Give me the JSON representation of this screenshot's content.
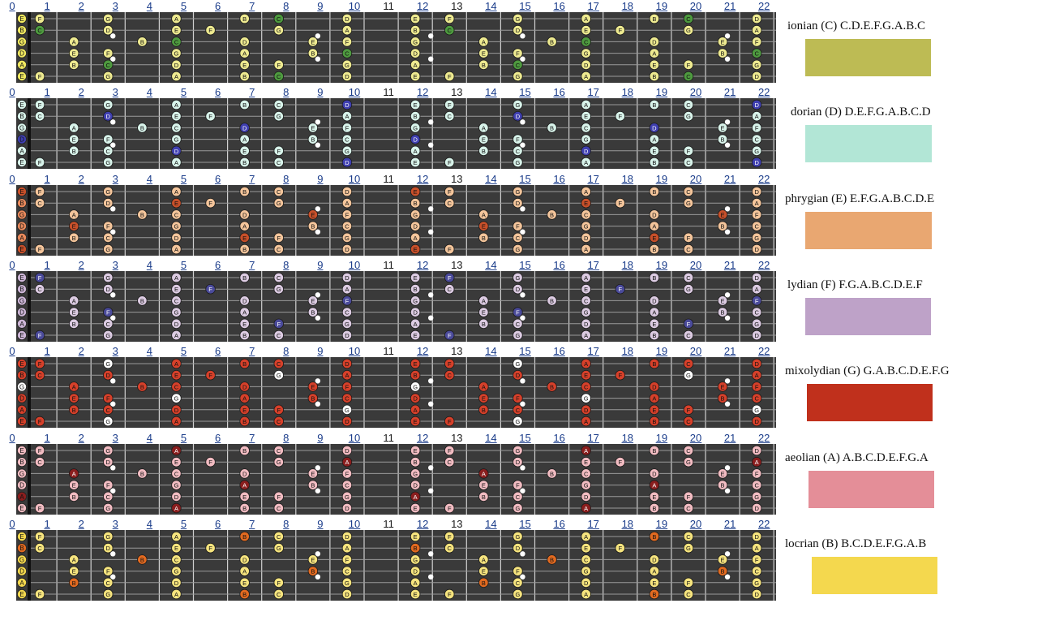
{
  "frets": [
    "0",
    "1",
    "2",
    "3",
    "4",
    "5",
    "6",
    "7",
    "8",
    "9",
    "10",
    "11",
    "12",
    "13",
    "14",
    "15",
    "16",
    "17",
    "18",
    "19",
    "20",
    "21",
    "22"
  ],
  "strings": [
    "E",
    "B",
    "G",
    "D",
    "A",
    "E"
  ],
  "modes": [
    {
      "label": "ionian (C)   C.D.E.F.G.A.B.C",
      "root": "C",
      "color": "#bdbb54",
      "rootColor": "#4e9a3f",
      "noteColor": "#eeea90",
      "openColor": "#f0e860",
      "notes": [
        "C",
        "D",
        "E",
        "F",
        "G",
        "A",
        "B"
      ]
    },
    {
      "label": "dorian (D)  D.E.F.G.A.B.C.D",
      "root": "D",
      "color": "#b2e6d6",
      "rootColor": "#3f3fb0",
      "noteColor": "#d8f3ea",
      "openColor": "#d8f3ea",
      "notes": [
        "D",
        "E",
        "F",
        "G",
        "A",
        "B",
        "C"
      ]
    },
    {
      "label": "phrygian (E)  E.F.G.A.B.C.D.E",
      "root": "E",
      "color": "#e9a771",
      "rootColor": "#c8502a",
      "noteColor": "#f4c59b",
      "openColor": "#e98a5c",
      "notes": [
        "E",
        "F",
        "G",
        "A",
        "B",
        "C",
        "D"
      ]
    },
    {
      "label": "lydian (F)  F.G.A.B.C.D.E.F",
      "root": "F",
      "color": "#bea2c8",
      "rootColor": "#4a4a9a",
      "noteColor": "#dccbe2",
      "openColor": "#cdb6d7",
      "notes": [
        "F",
        "G",
        "A",
        "B",
        "C",
        "D",
        "E"
      ]
    },
    {
      "label": "mixolydian (G) G.A.B.C.D.E.F.G",
      "root": "G",
      "color": "#c0301c",
      "rootColor": "#ffffff",
      "noteColor": "#d6402a",
      "openColor": "#d6402a",
      "notes": [
        "G",
        "A",
        "B",
        "C",
        "D",
        "E",
        "F"
      ]
    },
    {
      "label": "aeolian (A)  A.B.C.D.E.F.G.A",
      "root": "A",
      "color": "#e48e98",
      "rootColor": "#8a1e1e",
      "noteColor": "#f2bcc2",
      "openColor": "#f2bcc2",
      "notes": [
        "A",
        "B",
        "C",
        "D",
        "E",
        "F",
        "G"
      ]
    },
    {
      "label": "locrian (B) B.C.D.E.F.G.A.B",
      "root": "B",
      "color": "#f4d84e",
      "rootColor": "#e26a20",
      "noteColor": "#f6e47e",
      "openColor": "#f4d84e",
      "notes": [
        "B",
        "C",
        "D",
        "E",
        "F",
        "G",
        "A"
      ]
    }
  ]
}
